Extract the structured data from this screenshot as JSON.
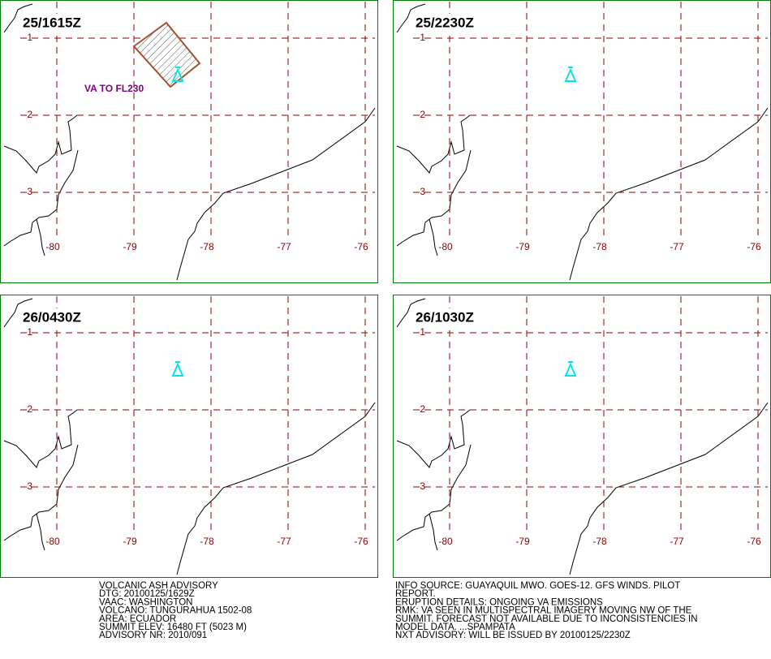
{
  "panels": [
    {
      "time": "25/1615Z",
      "annotation": "VA TO FL230"
    },
    {
      "time": "25/2230Z"
    },
    {
      "time": "26/0430Z"
    },
    {
      "time": "26/1030Z"
    }
  ],
  "latitudes": [
    -1,
    -2,
    -3
  ],
  "longitudes": [
    -80,
    -79,
    -78,
    -77,
    -76
  ],
  "advisory": {
    "left": [
      "VOLCANIC ASH ADVISORY",
      "DTG: 20100125/1629Z",
      "VAAC: WASHINGTON",
      "VOLCANO: TUNGURAHUA 1502-08",
      "AREA: ECUADOR",
      "SUMMIT ELEV: 16480 FT (5023 M)",
      "ADVISORY NR: 2010/091"
    ],
    "right": [
      "INFO SOURCE: GUAYAQUIL MWO. GOES-12. GFS WINDS. PILOT",
      "REPORT.",
      "ERUPTION DETAILS: ONGOING VA EMISSIONS",
      "RMK: VA SEEN IN MULTISPECTRAL IMAGERY MOVING NW OF THE",
      "SUMMIT. FORECAST NOT AVAILABLE DUE TO INCONSISTENCIES IN",
      "MODEL DATA. ...SPAMPATA",
      "NXT ADVISORY: WILL BE ISSUED BY 20100125/2230Z"
    ]
  }
}
